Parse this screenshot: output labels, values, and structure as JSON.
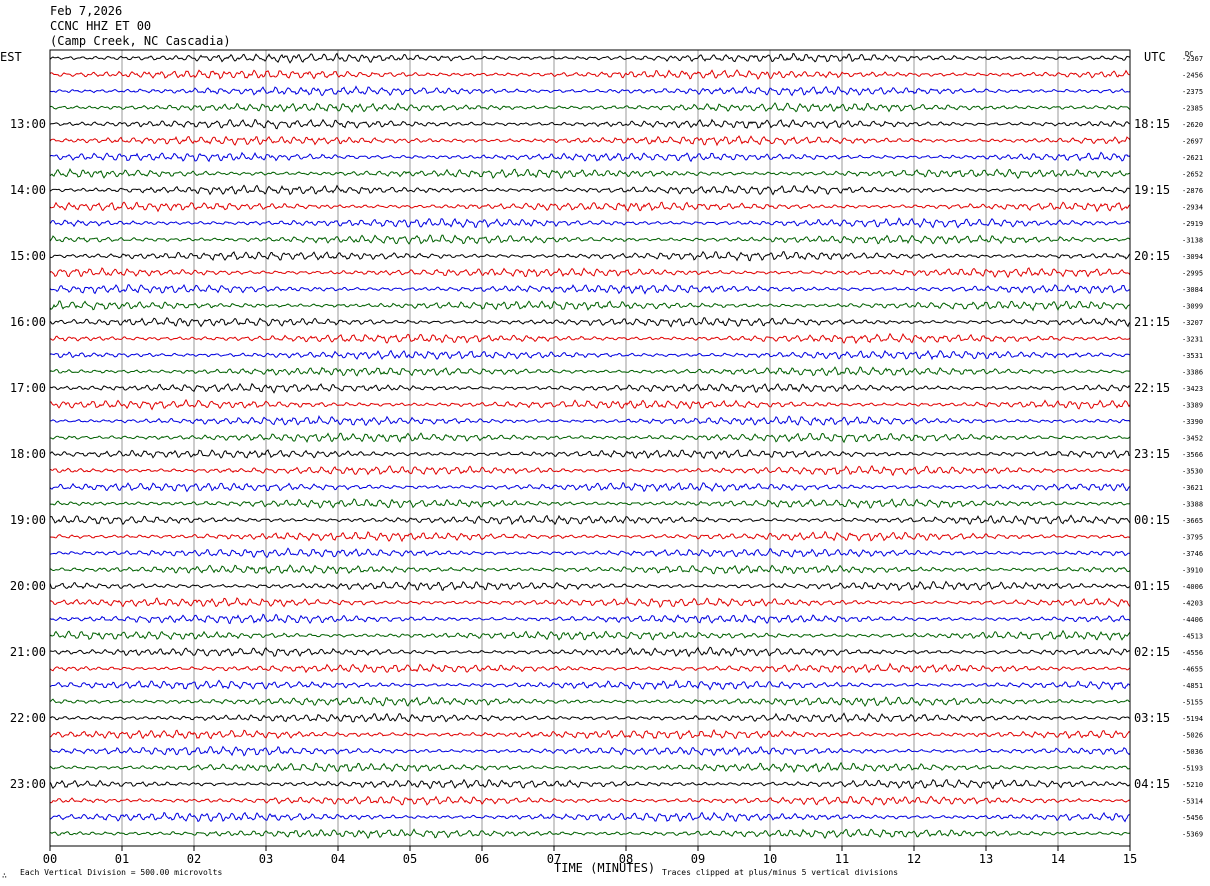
{
  "header": {
    "date": "Feb 7,2026",
    "station": "CCNC HHZ ET 00",
    "location": "(Camp Creek, NC Cascadia)"
  },
  "labels": {
    "left_zone": "EST",
    "right_zone": "UTC",
    "dc": "DC",
    "xlabel": "TIME (MINUTES)",
    "scale_note": "Each Vertical Division =  500.00 microvolts",
    "clip_note": "Traces clipped at plus/minus 5 vertical divisions",
    "corner_mark": "∴"
  },
  "chart_data": {
    "type": "line",
    "title": "CCNC HHZ ET 00",
    "xlabel": "TIME (MINUTES)",
    "xlim": [
      0,
      15
    ],
    "x_ticks": [
      "00",
      "01",
      "02",
      "03",
      "04",
      "05",
      "06",
      "07",
      "08",
      "09",
      "10",
      "11",
      "12",
      "13",
      "14",
      "15"
    ],
    "trace_colors": [
      "#000000",
      "#e00000",
      "#0000e0",
      "#006000"
    ],
    "est_hour_labels": [
      "13:00",
      "14:00",
      "15:00",
      "16:00",
      "17:00",
      "18:00",
      "19:00",
      "20:00",
      "21:00",
      "22:00",
      "23:00"
    ],
    "utc_hour_labels": [
      "18:15",
      "19:15",
      "20:15",
      "21:15",
      "22:15",
      "23:15",
      "00:15",
      "01:15",
      "02:15",
      "03:15",
      "04:15"
    ],
    "dc_offsets": [
      "-2367",
      "-2456",
      "-2375",
      "-2385",
      "-2620",
      "-2697",
      "-2621",
      "-2652",
      "-2876",
      "-2934",
      "-2919",
      "-3138",
      "-3094",
      "-2995",
      "-3084",
      "-3099",
      "-3207",
      "-3231",
      "-3531",
      "-3386",
      "-3423",
      "-3389",
      "-3390",
      "-3452",
      "-3566",
      "-3530",
      "-3621",
      "-3388",
      "-3665",
      "-3795",
      "-3746",
      "-3910",
      "-4006",
      "-4203",
      "-4406",
      "-4513",
      "-4556",
      "-4655",
      "-4851",
      "-5155",
      "-5194",
      "-5026",
      "-5036",
      "-5193",
      "-5210",
      "-5314",
      "-5456",
      "-5369"
    ],
    "grid": true
  }
}
